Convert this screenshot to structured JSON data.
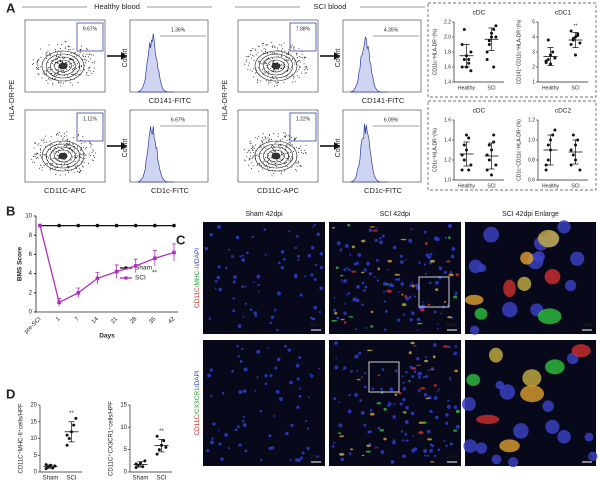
{
  "panel_a": {
    "label": "A",
    "healthy_title": "Healthy blood",
    "sci_title": "SCI blood",
    "y_axis": "HLA-DR-PE",
    "x_axis": "CD11C-APC",
    "count": "Count",
    "rows": [
      {
        "hist_label": "CD141-FITC",
        "healthy": {
          "gate": "9.67%",
          "hist": "1.36%"
        },
        "sci": {
          "gate": "7.88%",
          "hist": "4.35%"
        }
      },
      {
        "hist_label": "CD1c-FITC",
        "healthy": {
          "gate": "1.11%",
          "hist": "6.67%"
        },
        "sci": {
          "gate": "1.22%",
          "hist": "6.09%"
        }
      }
    ],
    "charts": [
      {
        "type": "dot",
        "title": "cDC",
        "y_label": "CD11c⁺HLA-DR⁺(%)",
        "categories": [
          "Healthy",
          "SCI"
        ],
        "ylim": [
          1.4,
          2.2
        ],
        "yticks": [
          1.4,
          1.6,
          1.8,
          {
            "value": 2,
            "label": "2.0"
          },
          2.2
        ],
        "groups": [
          [
            1.6,
            1.7,
            1.75,
            1.65,
            1.8,
            1.9,
            2.1,
            1.6,
            1.7,
            1.55
          ],
          [
            1.7,
            1.9,
            2.0,
            2.1,
            2.15,
            1.8,
            1.95,
            2.05,
            1.6,
            2.0
          ]
        ],
        "mean": [
          1.75,
          1.97
        ],
        "sd": [
          0.15,
          0.15
        ]
      },
      {
        "type": "dot",
        "title": "cDC1",
        "y_label": "CD141⁺CD11c⁺HLA-DR⁺(%)",
        "categories": [
          "Healthy",
          "SCI"
        ],
        "ylim": [
          1,
          5
        ],
        "yticks": [
          1,
          2,
          3,
          4,
          5
        ],
        "groups": [
          [
            2.3,
            2.5,
            2.8,
            3,
            2.6,
            2.4,
            3.8,
            2.2
          ],
          [
            3.5,
            3.8,
            4,
            4.2,
            3.6,
            4.4,
            3.9,
            2.8,
            4.1
          ]
        ],
        "mean": [
          2.7,
          3.8
        ],
        "sd": [
          0.6,
          0.5
        ],
        "annotation": "**"
      },
      {
        "type": "dot",
        "title": "cDC",
        "y_label": "CD1c⁺HLA-DR⁺(%)",
        "categories": [
          "Healthy",
          "SCI"
        ],
        "ylim": [
          1,
          1.6
        ],
        "yticks": [
          {
            "value": 1,
            "label": "1.0"
          },
          1.2,
          1.4,
          1.6
        ],
        "groups": [
          [
            1.1,
            1.2,
            1.3,
            1.42,
            1.15,
            1.25,
            1.35,
            1.45,
            1.1
          ],
          [
            1.1,
            1.2,
            1.3,
            1.38,
            1.15,
            1.25,
            1.35,
            1.05,
            1.45
          ]
        ],
        "mean": [
          1.26,
          1.24
        ],
        "sd": [
          0.12,
          0.13
        ]
      },
      {
        "type": "dot",
        "title": "cDC2",
        "y_label": "CD1c⁺CD11c⁺HLA-DR⁺(%)",
        "categories": [
          "Healthy",
          "SCI"
        ],
        "ylim": [
          0.6,
          1.2
        ],
        "yticks": [
          0.6,
          0.8,
          {
            "value": 1,
            "label": "1.0"
          },
          1.2
        ],
        "groups": [
          [
            0.7,
            0.8,
            0.9,
            1.05,
            1.1,
            0.75,
            0.95,
            1.0
          ],
          [
            0.75,
            0.85,
            0.95,
            1.0,
            0.7,
            0.9,
            1.05,
            0.8
          ]
        ],
        "mean": [
          0.9,
          0.88
        ],
        "sd": [
          0.15,
          0.12
        ]
      }
    ]
  },
  "panel_b": {
    "label": "B",
    "chart": {
      "type": "line",
      "y_label": "BMS Score",
      "x_label": "Days",
      "categories": [
        "pre-SCI",
        "1",
        "7",
        "14",
        "21",
        "28",
        "35",
        "42"
      ],
      "ylim": [
        0,
        10
      ],
      "yticks": [
        0,
        2,
        4,
        6,
        8,
        10
      ],
      "annotation": "**",
      "series": [
        {
          "name": "Sham",
          "color": "#111111",
          "values": [
            9,
            9,
            9,
            9,
            9,
            9,
            9,
            9
          ]
        },
        {
          "name": "SCI",
          "color": "#b02ec0",
          "values": [
            9,
            1,
            2,
            3.5,
            4.2,
            4.8,
            5.6,
            6.2
          ],
          "errors": [
            0,
            0.4,
            0.5,
            0.6,
            0.7,
            0.7,
            0.8,
            0.9
          ]
        }
      ]
    }
  },
  "panel_c": {
    "label": "C",
    "columns": [
      "Sham 42dpi",
      "SCI 42dpi",
      "SCI 42dpi Enlarge"
    ],
    "row_labels": [
      [
        "CD11C",
        "/MHC-II",
        "/DAPI"
      ],
      [
        "CD11C",
        "/CX3CR1",
        "/DAPI"
      ]
    ],
    "scale_bars": [
      "20μm",
      "20μm",
      "4μm"
    ]
  },
  "panel_d": {
    "label": "D",
    "charts": [
      {
        "type": "dot",
        "y_label": "CD11C⁺MHC-II⁺cells/HPF",
        "categories": [
          "Sham",
          "SCI"
        ],
        "ylim": [
          0,
          20
        ],
        "yticks": [
          0,
          5,
          10,
          15,
          20
        ],
        "groups": [
          [
            1,
            1.5,
            2,
            1.2,
            1.8,
            2.2
          ],
          [
            8,
            10,
            12,
            14,
            16,
            11
          ]
        ],
        "mean": [
          1.6,
          12
        ],
        "sd": [
          0.5,
          3
        ],
        "annotation": "**"
      },
      {
        "type": "dot",
        "y_label": "CD11C⁺CX3CR1⁺cells/HPF",
        "categories": [
          "Sham",
          "SCI"
        ],
        "ylim": [
          0,
          15
        ],
        "yticks": [
          0,
          5,
          10,
          15
        ],
        "groups": [
          [
            1,
            1.5,
            2,
            1.2,
            2.5,
            1.8
          ],
          [
            4,
            5,
            6,
            7,
            5.5,
            8
          ]
        ],
        "mean": [
          1.7,
          5.9
        ],
        "sd": [
          0.6,
          1.4
        ],
        "annotation": "**"
      }
    ]
  }
}
